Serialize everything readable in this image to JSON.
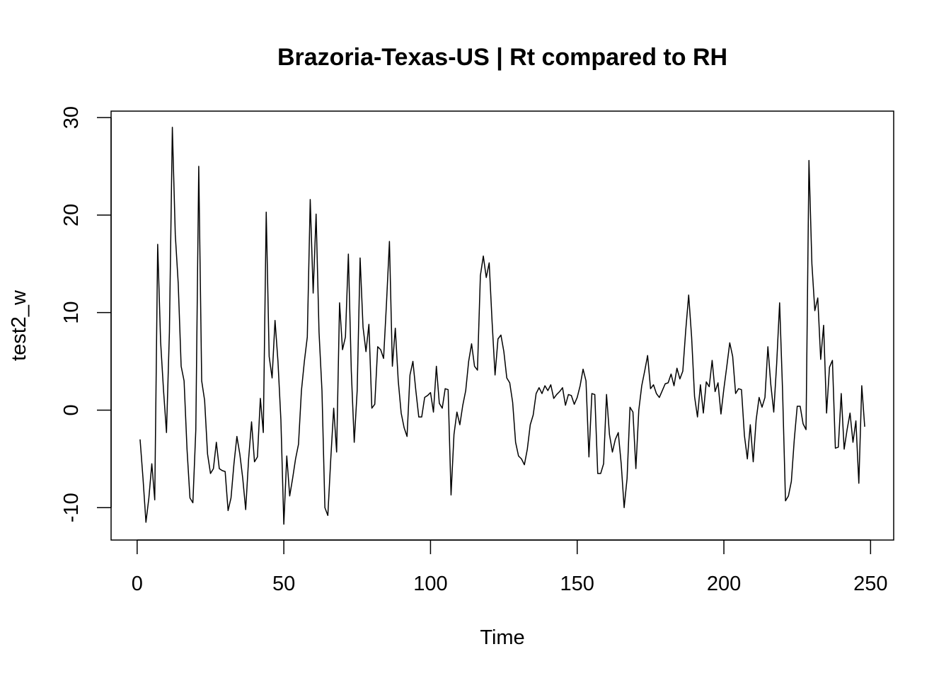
{
  "chart_data": {
    "type": "line",
    "title": "Brazoria-Texas-US | Rt compared to RH",
    "x_label": "Time",
    "y_label": "test2_w",
    "color": "#000000",
    "x": [
      1,
      2,
      3,
      4,
      5,
      6,
      7,
      8,
      9,
      10,
      11,
      12,
      13,
      14,
      15,
      16,
      17,
      18,
      19,
      20,
      21,
      22,
      23,
      24,
      25,
      26,
      27,
      28,
      29,
      30,
      31,
      32,
      33,
      34,
      35,
      36,
      37,
      38,
      39,
      40,
      41,
      42,
      43,
      44,
      45,
      46,
      47,
      48,
      49,
      50,
      51,
      52,
      53,
      54,
      55,
      56,
      57,
      58,
      59,
      60,
      61,
      62,
      63,
      64,
      65,
      66,
      67,
      68,
      69,
      70,
      71,
      72,
      73,
      74,
      75,
      76,
      77,
      78,
      79,
      80,
      81,
      82,
      83,
      84,
      85,
      86,
      87,
      88,
      89,
      90,
      91,
      92,
      93,
      94,
      95,
      96,
      97,
      98,
      99,
      100,
      101,
      102,
      103,
      104,
      105,
      106,
      107,
      108,
      109,
      110,
      111,
      112,
      113,
      114,
      115,
      116,
      117,
      118,
      119,
      120,
      121,
      122,
      123,
      124,
      125,
      126,
      127,
      128,
      129,
      130,
      131,
      132,
      133,
      134,
      135,
      136,
      137,
      138,
      139,
      140,
      141,
      142,
      143,
      144,
      145,
      146,
      147,
      148,
      149,
      150,
      151,
      152,
      153,
      154,
      155,
      156,
      157,
      158,
      159,
      160,
      161,
      162,
      163,
      164,
      165,
      166,
      167,
      168,
      169,
      170,
      171,
      172,
      173,
      174,
      175,
      176,
      177,
      178,
      179,
      180,
      181,
      182,
      183,
      184,
      185,
      186,
      187,
      188,
      189,
      190,
      191,
      192,
      193,
      194,
      195,
      196,
      197,
      198,
      199,
      200,
      201,
      202,
      203,
      204,
      205,
      206,
      207,
      208,
      209,
      210,
      211,
      212,
      213,
      214,
      215,
      216,
      217,
      218,
      219,
      220,
      221,
      222,
      223,
      224,
      225,
      226,
      227,
      228,
      229,
      230,
      231,
      232,
      233,
      234,
      235,
      236,
      237,
      238,
      239,
      240,
      241,
      242,
      243,
      244,
      245,
      246,
      247,
      248
    ],
    "values": [
      -3,
      -7,
      -11.5,
      -9,
      -5.5,
      -9.2,
      17,
      7,
      2,
      -2.3,
      8,
      29,
      18,
      13,
      4.5,
      3,
      -4,
      -9,
      -9.5,
      -2,
      25,
      3,
      1,
      -4.5,
      -6.5,
      -6,
      -3.3,
      -6,
      -6.2,
      -6.3,
      -10.3,
      -9,
      -5.5,
      -2.7,
      -4.5,
      -7,
      -10.2,
      -5,
      -1.2,
      -5.3,
      -4.8,
      1.2,
      -2.3,
      20.3,
      5.5,
      3.3,
      9.2,
      5,
      -1,
      -11.7,
      -4.7,
      -8.8,
      -7,
      -5,
      -3.5,
      2,
      5,
      7.5,
      21.6,
      12,
      20.1,
      8,
      2,
      -10,
      -10.8,
      -5,
      0.2,
      -4.3,
      11,
      6.2,
      7.5,
      16,
      4,
      -3.3,
      2,
      15.6,
      8.5,
      6,
      8.8,
      0.2,
      0.6,
      6.5,
      6.2,
      5.3,
      11,
      17.3,
      4.5,
      8.4,
      3,
      -0.3,
      -1.8,
      -2.7,
      3.6,
      5,
      2,
      -0.7,
      -0.7,
      1.3,
      1.5,
      1.8,
      -0.2,
      4.5,
      0.7,
      0.2,
      2.2,
      2.1,
      -8.7,
      -2.5,
      -0.2,
      -1.5,
      0.5,
      2,
      5,
      6.8,
      4.5,
      4.1,
      13.8,
      15.8,
      13.6,
      15.1,
      9,
      3.6,
      7.3,
      7.7,
      6,
      3.3,
      2.8,
      0.8,
      -3.3,
      -4.7,
      -5,
      -5.6,
      -4,
      -1.5,
      -0.5,
      1.7,
      2.3,
      1.7,
      2.5,
      2,
      2.6,
      1.2,
      1.6,
      1.9,
      2.3,
      0.5,
      1.6,
      1.5,
      0.6,
      1.3,
      2.5,
      4.2,
      3,
      -4.8,
      1.7,
      1.6,
      -6.5,
      -6.5,
      -5.5,
      1.6,
      -2.5,
      -4.3,
      -3,
      -2.3,
      -5.5,
      -10,
      -7,
      0.3,
      -0.2,
      -6,
      0,
      2.5,
      4,
      5.6,
      2.2,
      2.6,
      1.7,
      1.3,
      2,
      2.7,
      2.8,
      3.7,
      2.5,
      4.3,
      3.2,
      4,
      8.2,
      11.8,
      7.5,
      1.4,
      -0.7,
      2.6,
      -0.3,
      2.9,
      2.4,
      5.1,
      1.9,
      2.8,
      -0.4,
      2.2,
      4.5,
      6.9,
      5.5,
      1.7,
      2.2,
      2.1,
      -2.6,
      -5,
      -1.5,
      -5.3,
      -1,
      1.3,
      0.3,
      1.3,
      6.5,
      2.6,
      -0.2,
      4.8,
      11,
      2,
      -9.3,
      -8.8,
      -7.3,
      -3,
      0.4,
      0.4,
      -1.4,
      -2,
      25.6,
      15,
      10.2,
      11.5,
      5.2,
      8.7,
      -0.3,
      4.4,
      5.1,
      -3.9,
      -3.8,
      1.7,
      -4,
      -2,
      -0.3,
      -3.3,
      -1.1,
      -7.5,
      2.5,
      -1.7
    ],
    "xlim": [
      -8.88,
      257.88
    ],
    "ylim": [
      -13.32,
      30.66
    ],
    "xticks": [
      0,
      50,
      100,
      150,
      200,
      250
    ],
    "yticks": [
      -10,
      0,
      10,
      20,
      30
    ]
  }
}
